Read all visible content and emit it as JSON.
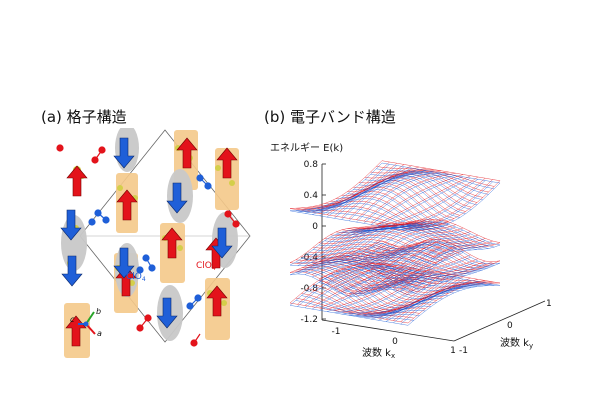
{
  "panels": {
    "a": {
      "title": "(a) 格子構造",
      "molecule_label": "ClO",
      "molecule_subscript": "4",
      "axes": {
        "a": "a",
        "b": "b",
        "c": "c"
      }
    },
    "b": {
      "title": "(b) 電子バンド構造",
      "energy_label": "エネルギー E(k)",
      "kx_label": "波数 k",
      "kx_sub": "x",
      "ky_label": "波数 k",
      "ky_sub": "y",
      "y_ticks": [
        "0.8",
        "0.4",
        "0",
        "-0.4",
        "-0.8",
        "-1.2"
      ],
      "kx_ticks": [
        "-1",
        "0",
        "1"
      ],
      "ky_ticks": [
        "-1",
        "0",
        "1"
      ]
    }
  },
  "colors": {
    "spin_up": "#e3131b",
    "spin_down": "#1f5fd8",
    "donor_block": "#f5c98a",
    "grey_block": "#c9c9c9"
  }
}
